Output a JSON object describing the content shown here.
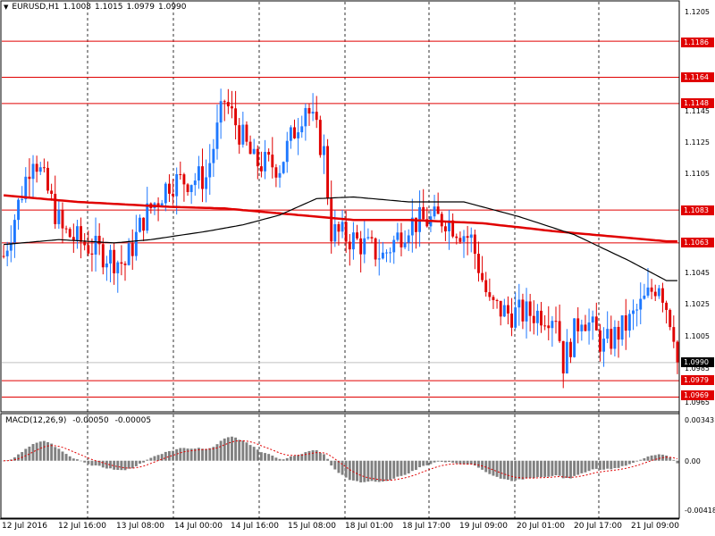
{
  "header": {
    "symbol": "EURUSD,H1",
    "open": "1.1008",
    "high": "1.1015",
    "low": "1.0979",
    "close": "1.0990"
  },
  "macd_header": {
    "name": "MACD(12,26,9)",
    "main": "-0.00050",
    "signal": "-0.00005"
  },
  "current_price": "1.0990",
  "price_axis": [
    "1.1205",
    "1.1145",
    "1.1125",
    "1.1105",
    "1.1045",
    "1.1025",
    "1.1005",
    "1.0985",
    "1.0965"
  ],
  "resistance_levels": [
    "1.1186",
    "1.1164",
    "1.1148",
    "1.1083",
    "1.1063",
    "1.0979",
    "1.0969"
  ],
  "macd_axis": [
    "0.00343",
    "0.00",
    "-0.00418"
  ],
  "time_axis": [
    "12 Jul 2016",
    "12 Jul 16:00",
    "13 Jul 08:00",
    "14 Jul 00:00",
    "14 Jul 16:00",
    "15 Jul 08:00",
    "18 Jul 01:00",
    "18 Jul 17:00",
    "19 Jul 09:00",
    "20 Jul 01:00",
    "20 Jul 17:00",
    "21 Jul 09:00"
  ],
  "colors": {
    "bull": "#1e78ff",
    "bear": "#e00000",
    "ma_red": "#e00000",
    "ma_black": "#000000",
    "level_line": "#e00000",
    "macd_bar": "#808080",
    "macd_signal": "#e00000"
  },
  "chart_data": {
    "type": "candlestick",
    "symbol": "EURUSD",
    "timeframe": "H1",
    "ylim": [
      1.096,
      1.121
    ],
    "macd_ylim": [
      -0.00418,
      0.00343
    ],
    "levels": [
      1.1186,
      1.1164,
      1.1148,
      1.1083,
      1.1063,
      1.0979,
      1.0969
    ],
    "ma_red_keyframes": [
      [
        0,
        1.1092
      ],
      [
        20,
        1.1088
      ],
      [
        45,
        1.1085
      ],
      [
        60,
        1.1084
      ],
      [
        80,
        1.108
      ],
      [
        95,
        1.1077
      ],
      [
        110,
        1.1077
      ],
      [
        130,
        1.1075
      ],
      [
        150,
        1.107
      ],
      [
        170,
        1.1066
      ],
      [
        180,
        1.1064
      ]
    ],
    "ma_black_keyframes": [
      [
        0,
        1.1062
      ],
      [
        15,
        1.1065
      ],
      [
        30,
        1.1063
      ],
      [
        40,
        1.1065
      ],
      [
        55,
        1.107
      ],
      [
        65,
        1.1074
      ],
      [
        75,
        1.108
      ],
      [
        85,
        1.109
      ],
      [
        95,
        1.1091
      ],
      [
        110,
        1.1088
      ],
      [
        125,
        1.1088
      ],
      [
        140,
        1.1079
      ],
      [
        155,
        1.1068
      ],
      [
        170,
        1.1052
      ],
      [
        180,
        1.104
      ]
    ],
    "close_keyframes": [
      [
        0,
        1.1055
      ],
      [
        8,
        1.1118
      ],
      [
        16,
        1.107
      ],
      [
        24,
        1.106
      ],
      [
        33,
        1.105
      ],
      [
        38,
        1.1078
      ],
      [
        45,
        1.11
      ],
      [
        55,
        1.1103
      ],
      [
        60,
        1.115
      ],
      [
        68,
        1.1112
      ],
      [
        75,
        1.111
      ],
      [
        82,
        1.1148
      ],
      [
        87,
        1.1118
      ],
      [
        89,
        1.107
      ],
      [
        95,
        1.1065
      ],
      [
        103,
        1.1055
      ],
      [
        110,
        1.1075
      ],
      [
        120,
        1.1078
      ],
      [
        127,
        1.1065
      ],
      [
        132,
        1.1025
      ],
      [
        137,
        1.102
      ],
      [
        150,
        1.102
      ],
      [
        152,
        1.099
      ],
      [
        157,
        1.102
      ],
      [
        163,
        1.1
      ],
      [
        170,
        1.1015
      ],
      [
        178,
        1.104
      ],
      [
        182,
        1.101
      ],
      [
        183,
        1.099
      ]
    ]
  }
}
